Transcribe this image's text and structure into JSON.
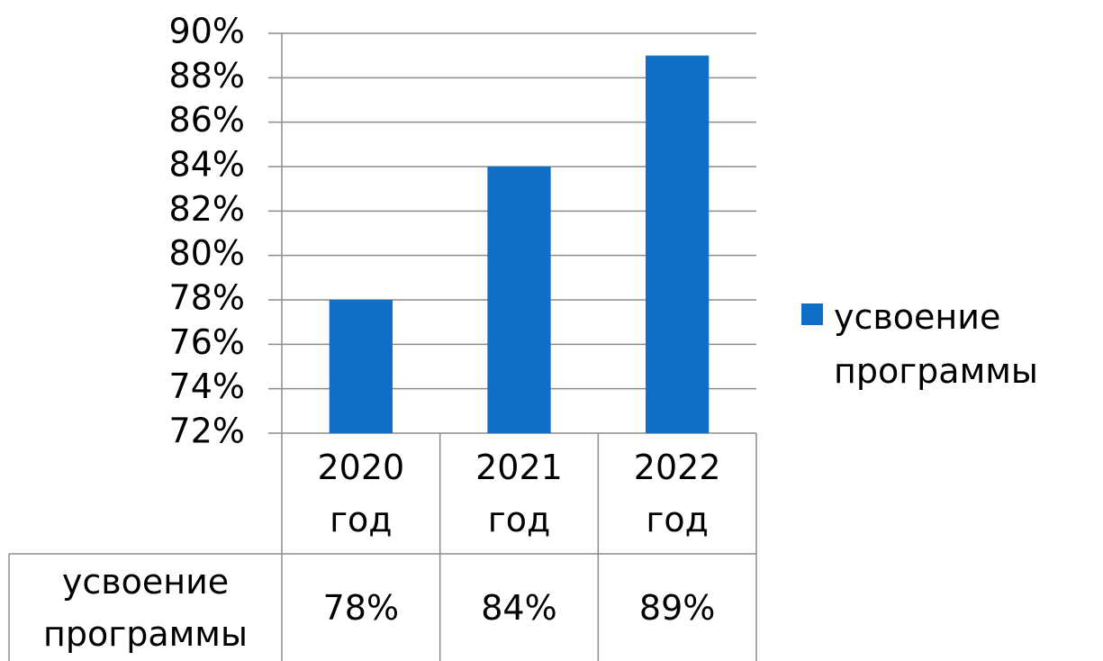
{
  "chart_data": {
    "type": "bar",
    "categories": [
      "2020 год",
      "2021 год",
      "2022 год"
    ],
    "series": [
      {
        "name": "усвоение программы",
        "color": "#0f6fc6",
        "values": [
          78,
          84,
          89
        ],
        "value_labels": [
          "78%",
          "84%",
          "89%"
        ]
      }
    ],
    "ylim": [
      72,
      90
    ],
    "yticks": [
      {
        "value": 72,
        "label": "72%"
      },
      {
        "value": 74,
        "label": "74%"
      },
      {
        "value": 76,
        "label": "76%"
      },
      {
        "value": 78,
        "label": "78%"
      },
      {
        "value": 80,
        "label": "80%"
      },
      {
        "value": 82,
        "label": "82%"
      },
      {
        "value": 84,
        "label": "84%"
      },
      {
        "value": 86,
        "label": "86%"
      },
      {
        "value": 88,
        "label": "88%"
      },
      {
        "value": 90,
        "label": "90%"
      }
    ],
    "grid": true,
    "legend": "right",
    "data_table": true
  }
}
